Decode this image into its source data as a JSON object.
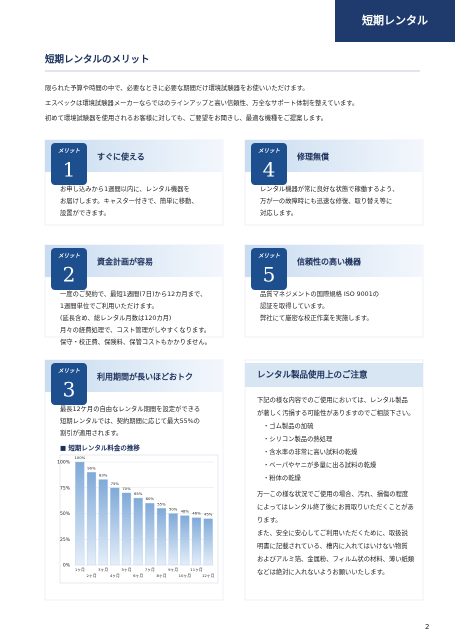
{
  "header": {
    "tab": "短期レンタル"
  },
  "section_title": "短期レンタルのメリット",
  "intro": [
    "限られた予算や時間の中で、必要なときに必要な期間だけ環境試験器をお使いいただけます。",
    "エスペックは環境試験器メーカーならではのラインアップと高い信頼性、万全なサポート体制を整えています。",
    "初めて環境試験器を使用されるお客様に対しても、ご要望をお聞きし、最適な機種をご提案します。"
  ],
  "merits": [
    {
      "badge": "メリット",
      "number": "1",
      "title": "すぐに使える",
      "body": [
        "お申し込みから1週間以内に、レンタル機器を",
        "お届けします。キャスター付きで、簡単に移動、",
        "設置ができます。"
      ]
    },
    {
      "badge": "メリット",
      "number": "4",
      "title": "修理無償",
      "body": [
        "レンタル機器が常に良好な状態で稼働するよう、",
        "万が一の故障時にも迅速な修復、取り替え等に",
        "対応します。"
      ]
    },
    {
      "badge": "メリット",
      "number": "2",
      "title": "資金計画が容易",
      "body": [
        "一度のご契約で、最短1週間(7日)から12カ月まで、",
        "1週間単位でご利用いただけます。",
        "(延長含め、総レンタル月数は120カ月)",
        "月々の経費処理で、コスト管理がしやすくなります。",
        "保守・校正費、保険料、保管コストもかかりません。"
      ]
    },
    {
      "badge": "メリット",
      "number": "5",
      "title": "信頼性の高い機器",
      "body": [
        "品質マネジメントの国際規格 ISO 9001の",
        "認証を取得しています。",
        "弊社にて厳密な校正作業を実施します。"
      ]
    },
    {
      "badge": "メリット",
      "number": "3",
      "title": "利用期間が長いほどおトク",
      "body": [
        "最長12ケ月の自由なレンタル期間を設定ができる",
        "短期レンタルでは、契約期間に応じて最大55%の",
        "割引が適用されます。"
      ]
    }
  ],
  "rate_chart": {
    "type": "bar",
    "title": "■ 短期レンタル料金の推移",
    "categories": [
      "1ヶ月",
      "2ヶ月",
      "3ヶ月",
      "4ヶ月",
      "5ヶ月",
      "6ヶ月",
      "7ヶ月",
      "8ヶ月",
      "9ヶ月",
      "10ヶ月",
      "11ヶ月",
      "12ヶ月"
    ],
    "values": [
      100,
      90,
      83,
      75,
      70,
      65,
      60,
      55,
      50,
      48,
      46,
      45
    ],
    "value_labels": [
      "100%",
      "90%",
      "83%",
      "75%",
      "70%",
      "65%",
      "60%",
      "55%",
      "50%",
      "48%",
      "46%",
      "45%"
    ],
    "ylim": [
      0,
      100
    ],
    "yticks": [
      {
        "value": 0,
        "label": "0%"
      },
      {
        "value": 25,
        "label": "25%"
      },
      {
        "value": 50,
        "label": "50%"
      },
      {
        "value": 75,
        "label": "75%"
      },
      {
        "value": 100,
        "label": "100%"
      }
    ],
    "color": "#a9c8e8",
    "grid": true
  },
  "notice": {
    "title": "レンタル製品使用上のご注意",
    "intro": [
      "下記の様な内容でのご使用においては、レンタル製品",
      "が著しく汚損する可能性がありますのでご相談下さい。"
    ],
    "items": [
      "・ゴム製品の加硫",
      "・シリコン製品の熱処理",
      "・含水率の非常に高い試料の乾燥",
      "・ベーパやヤニが多量に出る試料の乾燥",
      "・粉体の乾燥"
    ],
    "outro": [
      "万一この様な状況でご使用の場合、汚れ、損傷の程度",
      "によってはレンタル終了後にお買取りいただくことがあ",
      "ります。",
      "また、安全に安心してご利用いただくために、取扱説",
      "明書に記載されている、槽内に入れてはいけない物質",
      "およびアルミ箔、金属粉、フィルム状の材料、薄い紙類",
      "などは絶対に入れないようお願いいたします。"
    ]
  },
  "page_number": "2"
}
